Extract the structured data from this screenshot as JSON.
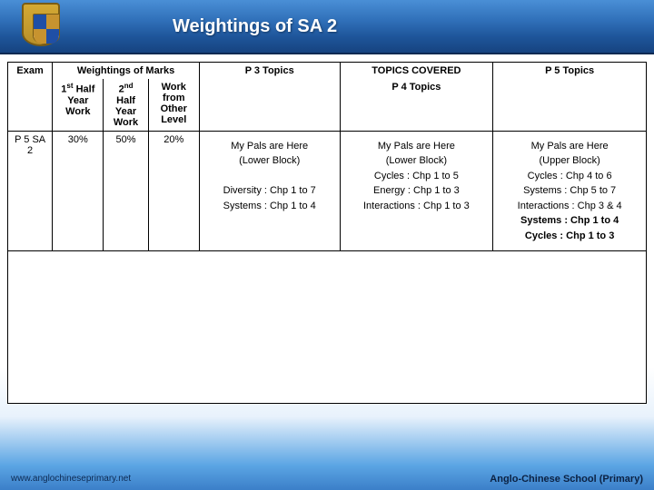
{
  "page": {
    "title": "Weightings of SA 2",
    "footer_left": "www.anglochineseprimary.net",
    "footer_right": "Anglo-Chinese School (Primary)"
  },
  "table": {
    "header": {
      "exam": "Exam",
      "weightings_group": "Weightings of Marks",
      "topics_group": "TOPICS COVERED",
      "w1_l1": "1",
      "w1_sup": "st",
      "w1_l2": " Half",
      "w1_line2": "Year",
      "w1_line3": "Work",
      "w2_l1": "2",
      "w2_sup": "nd",
      "w2_line2": "Half",
      "w2_line3": "Year",
      "w2_line4": "Work",
      "w3_line1": "Work",
      "w3_line2": "from",
      "w3_line3": "Other",
      "w3_line4": "Level",
      "p3": "P 3 Topics",
      "p4": "P 4 Topics",
      "p5": "P 5 Topics"
    },
    "row": {
      "exam": "P 5 SA 2",
      "w1": "30%",
      "w2": "50%",
      "w3": "20%",
      "p3_l1": "My Pals are Here",
      "p3_l2": "(Lower Block)",
      "p3_l3": "Diversity : Chp 1 to 7",
      "p3_l4": "Systems : Chp 1 to 4",
      "p4_l1": "My Pals are Here",
      "p4_l2": "(Lower Block)",
      "p4_l3": "Cycles : Chp 1 to 5",
      "p4_l4": "Energy : Chp 1 to 3",
      "p4_l5": "Interactions : Chp 1 to 3",
      "p5_l1": "My Pals are Here",
      "p5_l2": "(Upper Block)",
      "p5_l3": "Cycles : Chp 4 to 6",
      "p5_l4": "Systems : Chp 5 to 7",
      "p5_l5": "Interactions : Chp 3 & 4",
      "p5_l6": "Systems : Chp 1 to 4",
      "p5_l7": "Cycles : Chp 1 to 3"
    }
  }
}
